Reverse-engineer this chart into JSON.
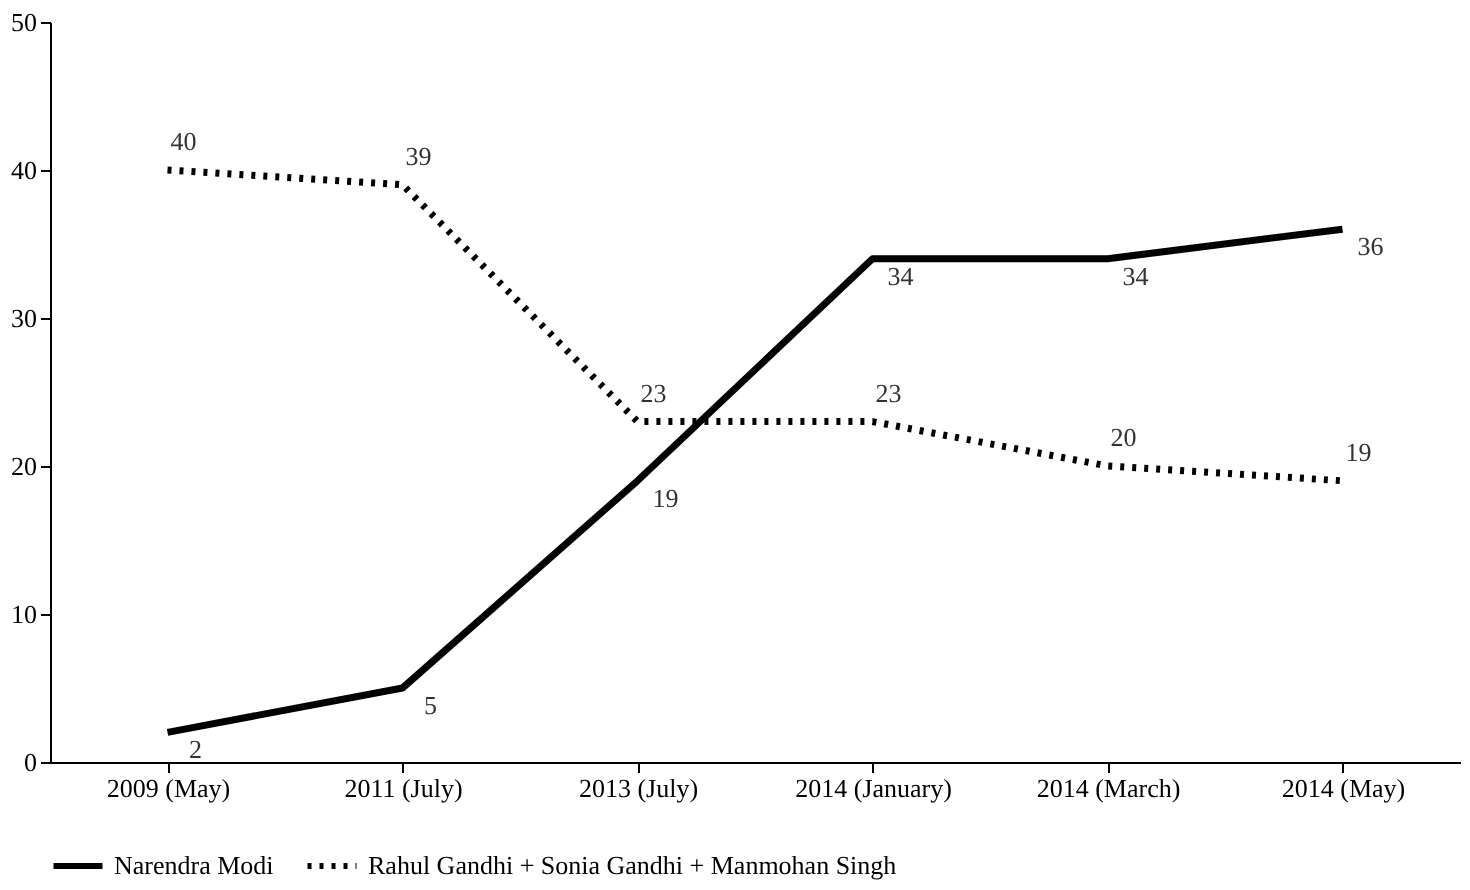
{
  "chart_data": {
    "type": "line",
    "categories": [
      "2009 (May)",
      "2011 (July)",
      "2013 (July)",
      "2014 (January)",
      "2014 (March)",
      "2014 (May)"
    ],
    "series": [
      {
        "name": "Narendra Modi",
        "color": "#000000",
        "line_style": "solid",
        "values": [
          2,
          5,
          19,
          34,
          34,
          36
        ]
      },
      {
        "name": "Rahul Gandhi + Sonia Gandhi + Manmohan Singh",
        "color": "#000000",
        "line_style": "dotted",
        "values": [
          40,
          39,
          23,
          23,
          20,
          19
        ]
      }
    ],
    "ylim": [
      0,
      50
    ],
    "yticks": [
      0,
      10,
      20,
      30,
      40,
      50
    ],
    "grid": false,
    "legend": "bottom",
    "data_labels": true,
    "marker": "none"
  }
}
